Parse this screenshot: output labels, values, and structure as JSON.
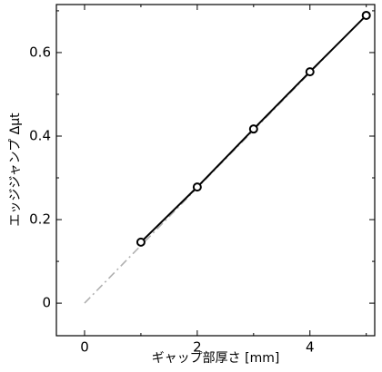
{
  "chart_data": {
    "type": "line",
    "x_label": "ギャップ部厚さ [mm]",
    "y_label": "エッジジャンプ Δμt",
    "series": [
      {
        "color": "#000000",
        "marker": "circle",
        "x": [
          1,
          2,
          3,
          4,
          5
        ],
        "values": [
          0.146,
          0.278,
          0.417,
          0.554,
          0.689
        ]
      },
      {
        "color": "#b0b0b0",
        "dash": "dashdot",
        "x": [
          0,
          5
        ],
        "values": [
          0,
          0.69
        ]
      }
    ],
    "xlim": [
      -0.5,
      5.15
    ],
    "xticks": [
      0,
      2,
      4
    ],
    "xminor": [
      1,
      3,
      5
    ],
    "ylim": [
      -0.078,
      0.715
    ],
    "yticks": [
      0,
      0.2,
      0.4,
      0.6
    ],
    "yminor": [
      0.1,
      0.3,
      0.5,
      0.7
    ],
    "grid": false
  }
}
